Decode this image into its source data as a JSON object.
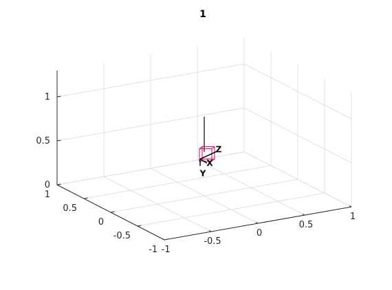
{
  "chart_data": {
    "type": "scatter",
    "title": "1",
    "projection": "3d",
    "grid": true,
    "x_ticks": [
      "-1",
      "-0.5",
      "0",
      "0.5",
      "1"
    ],
    "y_ticks": [
      "-1",
      "-0.5",
      "0",
      "0.5",
      "1"
    ],
    "z_ticks": [
      "0",
      "0.5",
      "1"
    ],
    "xlim": [
      -1,
      1
    ],
    "ylim": [
      -1,
      1
    ],
    "zlim": [
      0,
      1.3
    ],
    "series": [
      {
        "kind": "line",
        "color": "#000000",
        "points": [
          [
            0,
            0,
            0.9
          ],
          [
            0,
            0,
            0.5
          ]
        ]
      }
    ],
    "frame_labels": [
      "X",
      "Y",
      "Z"
    ],
    "frame_color": "#000000",
    "box_color": "#cc0066"
  }
}
